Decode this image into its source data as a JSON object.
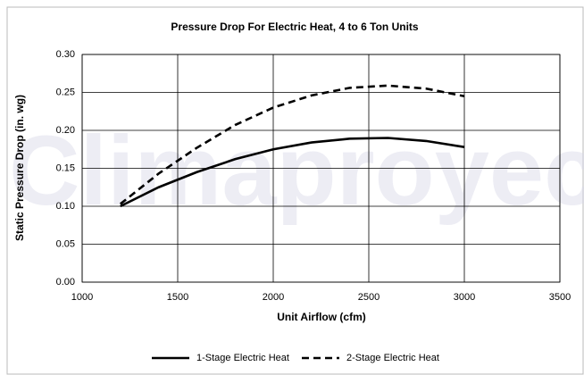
{
  "chart_data": {
    "type": "line",
    "title": "Pressure Drop For Electric Heat, 4 to 6 Ton Units",
    "x_label": "Unit Airflow (cfm)",
    "y_label": "Static Pressure Drop (in. wg)",
    "watermark": "Climaproyec",
    "x": [
      1200,
      1400,
      1600,
      1800,
      2000,
      2200,
      2400,
      2600,
      2800,
      3000
    ],
    "series": [
      {
        "name": "1-Stage Electric Heat",
        "color": "#000000",
        "dash": "solid",
        "values": [
          0.1,
          0.125,
          0.145,
          0.162,
          0.175,
          0.184,
          0.189,
          0.19,
          0.186,
          0.178
        ]
      },
      {
        "name": "2-Stage Electric Heat",
        "color": "#000000",
        "dash": "dashed",
        "values": [
          0.103,
          0.143,
          0.177,
          0.207,
          0.23,
          0.246,
          0.256,
          0.259,
          0.255,
          0.245
        ]
      }
    ],
    "xlim": [
      1000,
      3500
    ],
    "xticks": [
      1000,
      1500,
      2000,
      2500,
      3000,
      3500
    ],
    "ylim": [
      0,
      0.3
    ],
    "yticks": [
      {
        "value": 0,
        "label": "0.00"
      },
      {
        "value": 0.05,
        "label": "0.05"
      },
      {
        "value": 0.1,
        "label": "0.10"
      },
      {
        "value": 0.15,
        "label": "0.15"
      },
      {
        "value": 0.2,
        "label": "0.20"
      },
      {
        "value": 0.25,
        "label": "0.25"
      },
      {
        "value": 0.3,
        "label": "0.30"
      }
    ],
    "grid": true,
    "legend": "bottom"
  }
}
